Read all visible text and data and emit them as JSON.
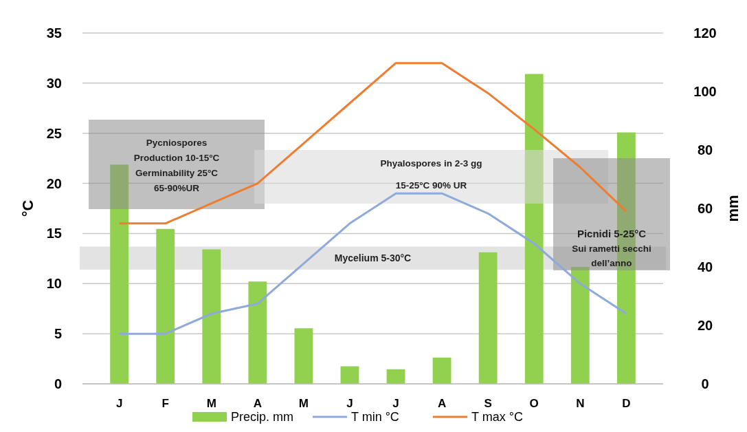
{
  "chart_data": {
    "type": "bar",
    "ylabel": "°C",
    "y2label": "mm",
    "categories": [
      "J",
      "F",
      "M",
      "A",
      "M",
      "J",
      "J",
      "A",
      "S",
      "O",
      "N",
      "D"
    ],
    "series": [
      {
        "name": "Precip. mm",
        "axis": "y2",
        "color": "#92d050",
        "values": [
          75,
          53,
          46,
          35,
          19,
          6,
          5,
          9,
          45,
          106,
          40,
          86
        ]
      },
      {
        "name": "T min °C",
        "type": "line",
        "color": "#8eaadb",
        "values": [
          5,
          5,
          7,
          8,
          12,
          16,
          19,
          19,
          17,
          14,
          10,
          7
        ]
      },
      {
        "name": "T max °C",
        "type": "line",
        "color": "#ed7d31",
        "values": [
          16,
          16,
          18,
          20,
          24,
          28,
          32,
          32,
          29,
          25.4,
          21.6,
          17.2
        ]
      }
    ],
    "ylim": [
      0,
      35
    ],
    "yticks": [
      0,
      5,
      10,
      15,
      20,
      25,
      30,
      35
    ],
    "y2lim": [
      0,
      120
    ],
    "y2ticks": [
      0,
      20,
      40,
      60,
      80,
      100,
      120
    ],
    "grid": "y",
    "legend": "bottom",
    "marker": "none",
    "bands": [
      {
        "axis": "y",
        "from": 11.4,
        "to": 13.7,
        "label": "Mycelium 5-30°C",
        "color": "#d9d9d9"
      }
    ],
    "annotations": [
      "Pycniospores\nProduction  10-15°C\nGerminability  25°C\n65-90%UR",
      "Phyalospores  in 2-3 gg\n15-25°C  90% UR",
      "Picnidi 5-25°C\nSui rametti secchi\ndell’anno"
    ]
  }
}
